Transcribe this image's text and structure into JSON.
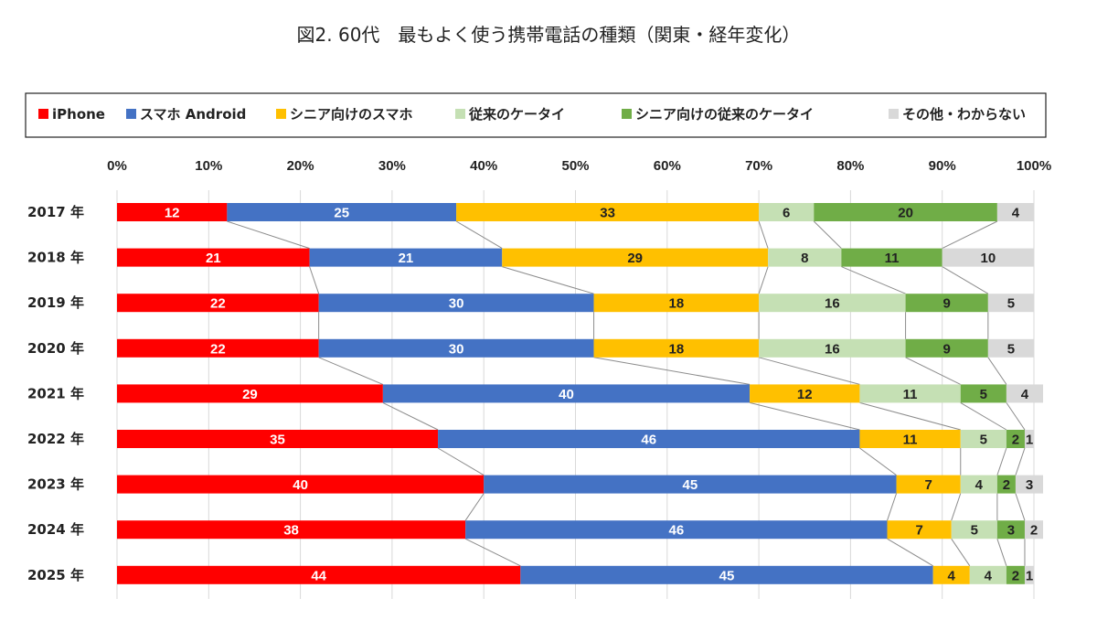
{
  "title": "図2. 60代　最もよく使う携帯電話の種類（関東・経年変化）",
  "chart_data": {
    "type": "bar",
    "orientation": "horizontal",
    "stacked": true,
    "percent": true,
    "title": "図2. 60代　最もよく使う携帯電話の種類（関東・経年変化）",
    "xlabel": "",
    "ylabel": "",
    "xlim": [
      0,
      100
    ],
    "xticks": [
      "0%",
      "10%",
      "20%",
      "30%",
      "40%",
      "50%",
      "60%",
      "70%",
      "80%",
      "90%",
      "100%"
    ],
    "legend_position": "top",
    "grid": true,
    "categories": [
      "2017 年",
      "2018 年",
      "2019 年",
      "2020 年",
      "2021 年",
      "2022 年",
      "2023 年",
      "2024 年",
      "2025 年"
    ],
    "series": [
      {
        "name": "iPhone",
        "color": "#ff0000",
        "label_color": "#ffffff",
        "values": [
          12,
          21,
          22,
          22,
          29,
          35,
          40,
          38,
          44
        ]
      },
      {
        "name": "スマホ Android",
        "color": "#4472c4",
        "label_color": "#ffffff",
        "values": [
          25,
          21,
          30,
          30,
          40,
          46,
          45,
          46,
          45
        ]
      },
      {
        "name": "シニア向けのスマホ",
        "color": "#ffc000",
        "label_color": "#222222",
        "values": [
          33,
          29,
          18,
          18,
          12,
          11,
          7,
          7,
          4
        ]
      },
      {
        "name": "従来のケータイ",
        "color": "#c5e0b4",
        "label_color": "#222222",
        "values": [
          6,
          8,
          16,
          16,
          11,
          5,
          4,
          5,
          4
        ]
      },
      {
        "name": "シニア向けの従来のケータイ",
        "color": "#70ad47",
        "label_color": "#222222",
        "values": [
          20,
          11,
          9,
          9,
          5,
          2,
          2,
          3,
          2
        ]
      },
      {
        "name": "その他・わからない",
        "color": "#d9d9d9",
        "label_color": "#222222",
        "values": [
          4,
          10,
          5,
          5,
          4,
          1,
          3,
          2,
          1
        ]
      }
    ]
  }
}
